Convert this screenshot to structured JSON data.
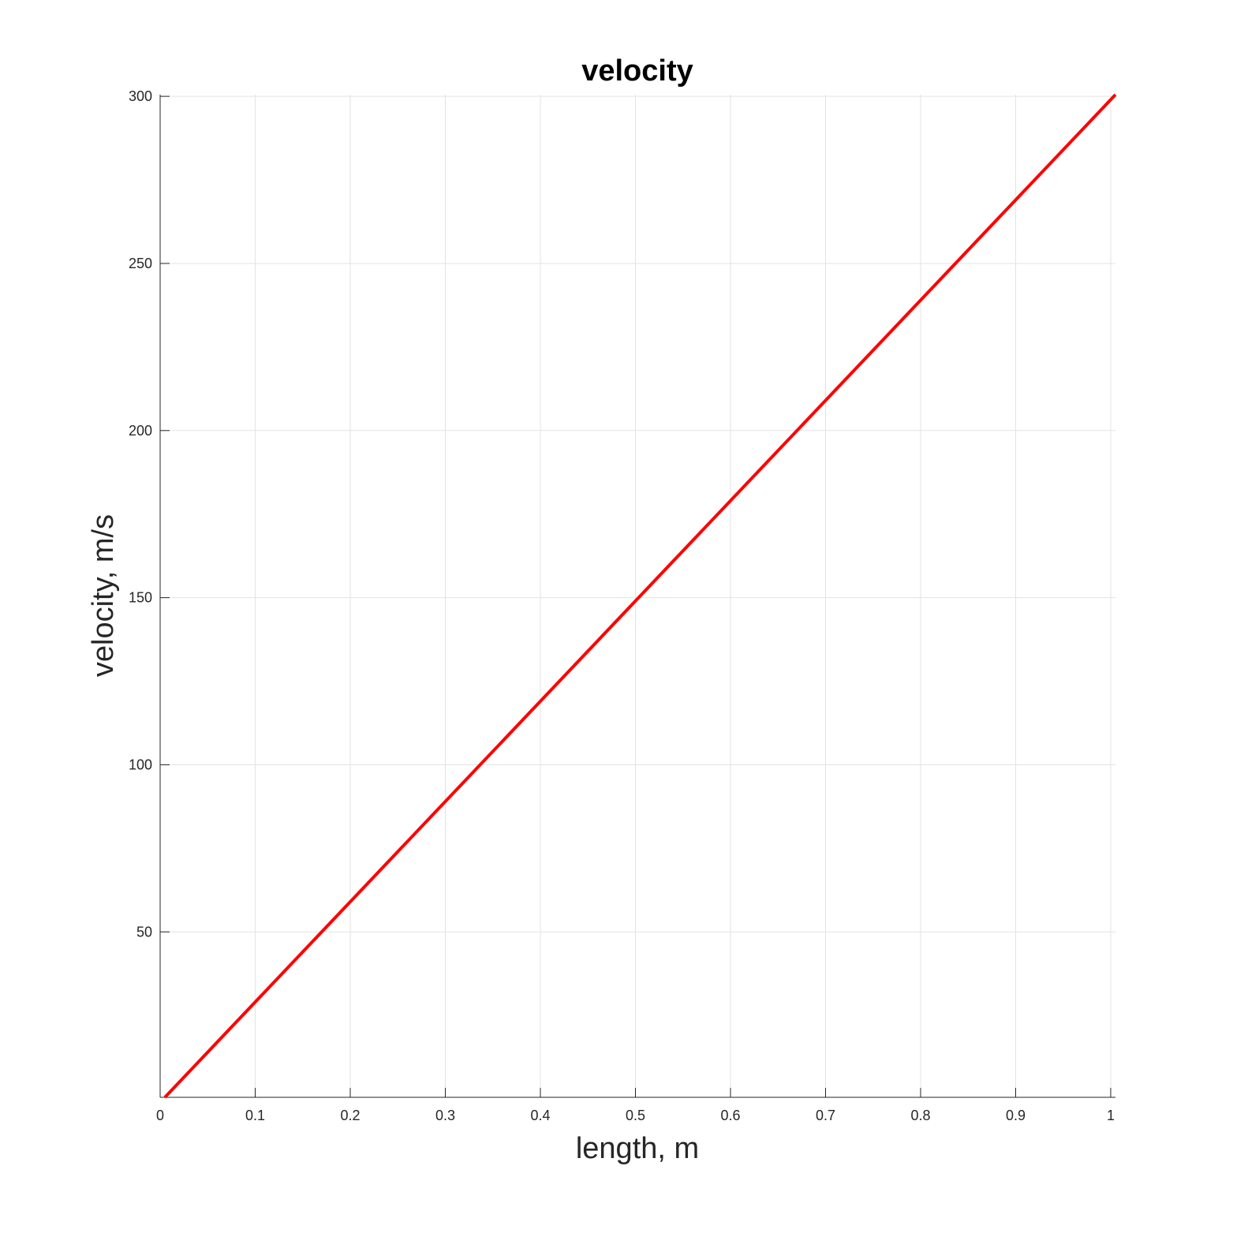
{
  "chart_data": {
    "type": "line",
    "title": "velocity",
    "xlabel": "length, m",
    "ylabel": "velocity, m/s",
    "xlim": [
      0,
      1.005
    ],
    "ylim": [
      0.5,
      300.5
    ],
    "xticks": [
      0,
      0.1,
      0.2,
      0.3,
      0.4,
      0.5,
      0.6,
      0.7,
      0.8,
      0.9,
      1
    ],
    "xtick_labels": [
      "0",
      "0.1",
      "0.2",
      "0.3",
      "0.4",
      "0.5",
      "0.6",
      "0.7",
      "0.8",
      "0.9",
      "1"
    ],
    "yticks": [
      50,
      100,
      150,
      200,
      250,
      300
    ],
    "ytick_labels": [
      "50",
      "100",
      "150",
      "200",
      "250",
      "300"
    ],
    "grid": true,
    "series": [
      {
        "color": "#ff0000",
        "x": [
          0.005,
          1.005
        ],
        "y": [
          0.5,
          300.5
        ]
      }
    ]
  }
}
